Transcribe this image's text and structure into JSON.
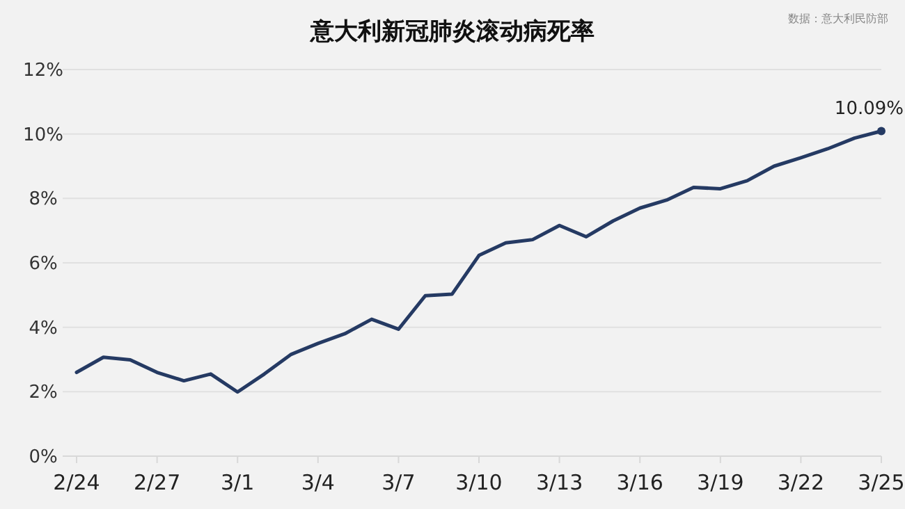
{
  "chart_data": {
    "type": "line",
    "title": "意大利新冠肺炎滚动病死率",
    "categories": [
      "2/24",
      null,
      null,
      "2/27",
      null,
      null,
      "3/1",
      null,
      null,
      "3/4",
      null,
      null,
      "3/7",
      null,
      null,
      "3/10",
      null,
      null,
      "3/13",
      null,
      null,
      "3/16",
      null,
      null,
      "3/19",
      null,
      null,
      "3/22",
      null,
      null,
      "3/25"
    ],
    "series": [
      {
        "color": "#253a63",
        "values": [
          2.6,
          3.07,
          2.99,
          2.6,
          2.34,
          2.55,
          1.99,
          2.55,
          3.16,
          3.5,
          3.8,
          4.25,
          3.94,
          4.98,
          5.03,
          6.23,
          6.62,
          6.72,
          7.16,
          6.81,
          7.3,
          7.7,
          7.95,
          8.34,
          8.3,
          8.55,
          9.0,
          9.26,
          9.54,
          9.87,
          10.09
        ]
      }
    ],
    "ylim": [
      0,
      12
    ],
    "yticks": [
      {
        "value": 0,
        "label": "0%"
      },
      {
        "value": 2,
        "label": "2%"
      },
      {
        "value": 4,
        "label": "4%"
      },
      {
        "value": 6,
        "label": "6%"
      },
      {
        "value": 8,
        "label": "8%"
      },
      {
        "value": 10,
        "label": "10%"
      },
      {
        "value": 12,
        "label": "12%"
      }
    ],
    "grid": "y",
    "annotations": [
      {
        "text": "10.09%",
        "x": "3/25",
        "y": 10.09
      },
      "数据：意大利民防部"
    ]
  }
}
